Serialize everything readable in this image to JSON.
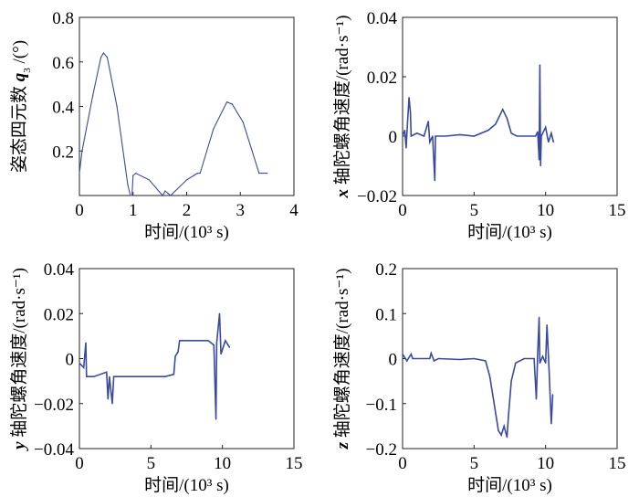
{
  "line_color": "#3a4aa0",
  "chart_data": [
    {
      "type": "line",
      "xlabel": "时间/(10³ s)",
      "ylabel_prefix": "姿态四元数 ",
      "ylabel_var": "q",
      "ylabel_sub": "3",
      "ylabel_suffix": " /(°)",
      "xlim": [
        0,
        4
      ],
      "ylim": [
        0,
        0.8
      ],
      "xticks": [
        "0",
        "1",
        "2",
        "3",
        "4"
      ],
      "xtick_values": [
        0,
        1,
        2,
        3,
        4
      ],
      "yticks": [
        "0.2",
        "0.4",
        "0.6",
        "0.8"
      ],
      "ytick_values": [
        0.2,
        0.4,
        0.6,
        0.8
      ],
      "points": [
        [
          0,
          0.1
        ],
        [
          0.05,
          0.2
        ],
        [
          0.25,
          0.45
        ],
        [
          0.4,
          0.62
        ],
        [
          0.45,
          0.64
        ],
        [
          0.52,
          0.62
        ],
        [
          0.7,
          0.4
        ],
        [
          0.9,
          0.05
        ],
        [
          0.95,
          0
        ],
        [
          0.98,
          0
        ],
        [
          1.0,
          0.09
        ],
        [
          1.05,
          0.1
        ],
        [
          1.3,
          0.07
        ],
        [
          1.55,
          0
        ],
        [
          1.6,
          0.02
        ],
        [
          1.65,
          0.01
        ],
        [
          1.7,
          0
        ],
        [
          2.0,
          0.07
        ],
        [
          2.2,
          0.1
        ],
        [
          2.25,
          0.1
        ],
        [
          2.5,
          0.3
        ],
        [
          2.75,
          0.42
        ],
        [
          2.85,
          0.41
        ],
        [
          3.05,
          0.33
        ],
        [
          3.35,
          0.1
        ],
        [
          3.5,
          0.1
        ]
      ]
    },
    {
      "type": "line",
      "xlabel": "时间/(10³ s)",
      "ylabel_prefix": "",
      "ylabel_var": "x",
      "ylabel_sub": "",
      "ylabel_suffix": " 轴陀螺角速度/(rad·s⁻¹)",
      "xlim": [
        0,
        15
      ],
      "ylim": [
        -0.02,
        0.04
      ],
      "xticks": [
        "0",
        "5",
        "10",
        "15"
      ],
      "xtick_values": [
        0,
        5,
        10,
        15
      ],
      "yticks": [
        "-0.02",
        "0",
        "0.02",
        "0.04"
      ],
      "ytick_values": [
        -0.02,
        0,
        0.02,
        0.04
      ],
      "points": [
        [
          0,
          0
        ],
        [
          0.15,
          0.002
        ],
        [
          0.25,
          -0.004
        ],
        [
          0.35,
          0.005
        ],
        [
          0.45,
          0.013
        ],
        [
          0.55,
          0.008
        ],
        [
          0.6,
          0
        ],
        [
          1.0,
          0.001
        ],
        [
          1.5,
          0
        ],
        [
          1.8,
          0.005
        ],
        [
          1.9,
          -0.002
        ],
        [
          2.1,
          0
        ],
        [
          2.25,
          -0.015
        ],
        [
          2.3,
          0
        ],
        [
          3,
          0
        ],
        [
          4,
          0.0005
        ],
        [
          5,
          0
        ],
        [
          6,
          0.002
        ],
        [
          6.5,
          0.004
        ],
        [
          7,
          0.009
        ],
        [
          7.3,
          0.006
        ],
        [
          7.6,
          0.001
        ],
        [
          8,
          0
        ],
        [
          9.3,
          0
        ],
        [
          9.45,
          0.0015
        ],
        [
          9.55,
          -0.008
        ],
        [
          9.6,
          0.024
        ],
        [
          9.65,
          -0.01
        ],
        [
          9.7,
          0
        ],
        [
          10,
          0.003
        ],
        [
          10.2,
          -0.002
        ],
        [
          10.4,
          0.001
        ],
        [
          10.55,
          -0.002
        ]
      ]
    },
    {
      "type": "line",
      "xlabel": "时间/(10³ s)",
      "ylabel_prefix": "",
      "ylabel_var": "y",
      "ylabel_sub": "",
      "ylabel_suffix": " 轴陀螺角速度/(rad·s⁻¹)",
      "xlim": [
        0,
        15
      ],
      "ylim": [
        -0.04,
        0.04
      ],
      "xticks": [
        "0",
        "5",
        "10",
        "15"
      ],
      "xtick_values": [
        0,
        5,
        10,
        15
      ],
      "yticks": [
        "-0.04",
        "-0.02",
        "0",
        "0.02",
        "0.04"
      ],
      "ytick_values": [
        -0.04,
        -0.02,
        0,
        0.02,
        0.04
      ],
      "points": [
        [
          0,
          -0.002
        ],
        [
          0.3,
          -0.004
        ],
        [
          0.45,
          0.007
        ],
        [
          0.5,
          -0.008
        ],
        [
          1.0,
          -0.008
        ],
        [
          1.9,
          -0.006
        ],
        [
          2.0,
          -0.018
        ],
        [
          2.1,
          -0.008
        ],
        [
          2.3,
          -0.02
        ],
        [
          2.4,
          -0.008
        ],
        [
          3,
          -0.008
        ],
        [
          4,
          -0.008
        ],
        [
          5,
          -0.008
        ],
        [
          6,
          -0.008
        ],
        [
          6.6,
          -0.007
        ],
        [
          6.7,
          0.001
        ],
        [
          6.9,
          0.003
        ],
        [
          7.0,
          0.008
        ],
        [
          8,
          0.008
        ],
        [
          9,
          0.008
        ],
        [
          9.4,
          0.006
        ],
        [
          9.55,
          -0.027
        ],
        [
          9.6,
          0.007
        ],
        [
          9.8,
          0.02
        ],
        [
          9.9,
          0.002
        ],
        [
          10.2,
          0.008
        ],
        [
          10.5,
          0.005
        ]
      ]
    },
    {
      "type": "line",
      "xlabel": "时间/(10³ s)",
      "ylabel_prefix": "",
      "ylabel_var": "z",
      "ylabel_sub": "",
      "ylabel_suffix": " 轴陀螺角速度/(rad·s⁻¹)",
      "xlim": [
        0,
        15
      ],
      "ylim": [
        -0.2,
        0.2
      ],
      "xticks": [
        "0",
        "5",
        "10",
        "15"
      ],
      "xtick_values": [
        0,
        5,
        10,
        15
      ],
      "yticks": [
        "-0.2",
        "-0.1",
        "0",
        "0.1",
        "0.2"
      ],
      "ytick_values": [
        -0.2,
        -0.1,
        0,
        0.1,
        0.2
      ],
      "points": [
        [
          0,
          0.01
        ],
        [
          0.3,
          -0.005
        ],
        [
          0.6,
          0.01
        ],
        [
          0.7,
          0
        ],
        [
          1.9,
          0
        ],
        [
          2.0,
          0.012
        ],
        [
          2.2,
          -0.005
        ],
        [
          2.5,
          0
        ],
        [
          4,
          -0.002
        ],
        [
          5,
          0
        ],
        [
          5.8,
          -0.005
        ],
        [
          6.1,
          -0.04
        ],
        [
          6.4,
          -0.1
        ],
        [
          6.7,
          -0.16
        ],
        [
          6.9,
          -0.17
        ],
        [
          7.1,
          -0.15
        ],
        [
          7.3,
          -0.175
        ],
        [
          7.4,
          -0.13
        ],
        [
          7.6,
          -0.05
        ],
        [
          7.9,
          -0.01
        ],
        [
          8.5,
          0
        ],
        [
          9.2,
          0
        ],
        [
          9.35,
          -0.09
        ],
        [
          9.45,
          0.01
        ],
        [
          9.55,
          0.092
        ],
        [
          9.6,
          -0.01
        ],
        [
          9.8,
          0.005
        ],
        [
          10.0,
          -0.01
        ],
        [
          10.1,
          0.075
        ],
        [
          10.25,
          -0.03
        ],
        [
          10.4,
          -0.145
        ],
        [
          10.5,
          -0.08
        ]
      ]
    }
  ]
}
